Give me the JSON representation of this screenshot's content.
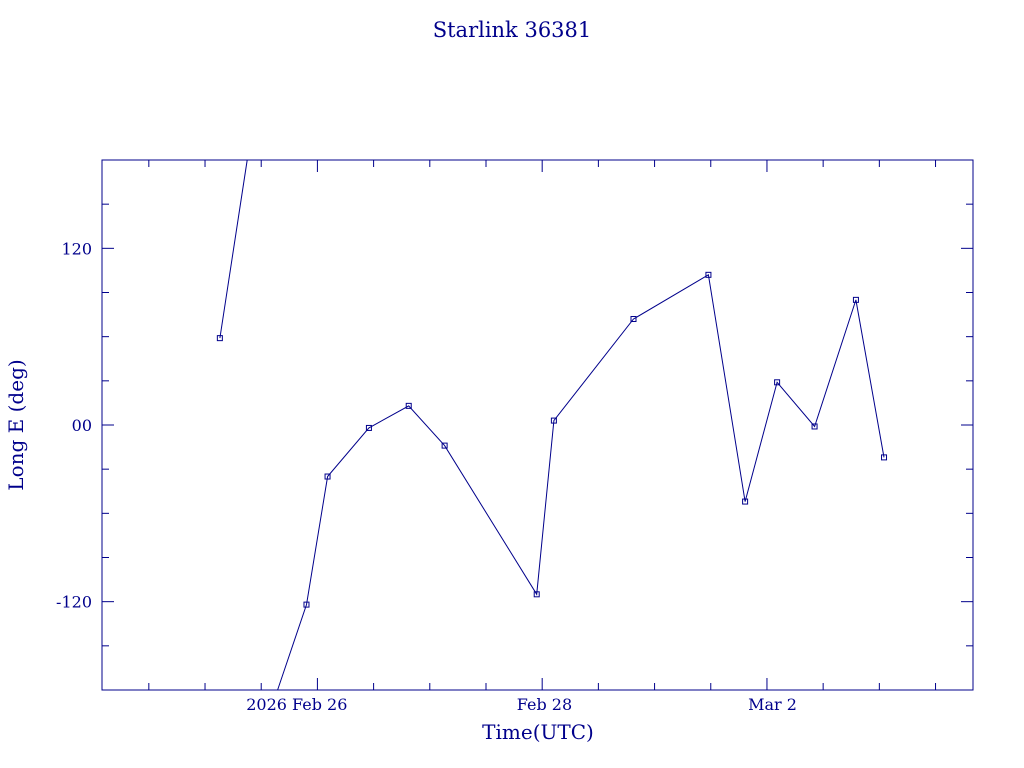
{
  "chart_data": {
    "type": "line",
    "title": "Starlink 36381",
    "xlabel": "Time(UTC)",
    "ylabel": "Long E (deg)",
    "x_tick_labels": [
      "2026 Feb 26",
      "Feb 28",
      "Mar  2"
    ],
    "y_tick_labels": [
      "120",
      "00",
      "-120"
    ],
    "x_ticks": [
      "2026-02-26T00:00",
      "2026-02-28T00:00",
      "2026-03-02T00:00"
    ],
    "y_ticks": [
      120,
      0,
      -120
    ],
    "xlim": [
      "2026-02-24T02:00",
      "2026-03-03T20:00"
    ],
    "ylim": [
      -180,
      180
    ],
    "grid": false,
    "series": [
      {
        "segments": [
          [
            {
              "x": "2026-02-25T03:10",
              "y": 59
            },
            {
              "x": "2026-02-25T09:00",
              "y": 180
            }
          ],
          [
            {
              "x": "2026-02-25T15:30",
              "y": -180
            },
            {
              "x": "2026-02-25T21:40",
              "y": -122
            },
            {
              "x": "2026-02-26T02:10",
              "y": -35
            },
            {
              "x": "2026-02-26T11:00",
              "y": -2
            },
            {
              "x": "2026-02-26T19:30",
              "y": 13
            },
            {
              "x": "2026-02-27T03:10",
              "y": -14
            },
            {
              "x": "2026-02-27T22:50",
              "y": -115
            },
            {
              "x": "2026-02-28T02:30",
              "y": 3
            },
            {
              "x": "2026-02-28T19:30",
              "y": 72
            },
            {
              "x": "2026-03-01T11:30",
              "y": 102
            },
            {
              "x": "2026-03-01T19:20",
              "y": -52
            },
            {
              "x": "2026-03-02T02:10",
              "y": 29
            },
            {
              "x": "2026-03-02T10:10",
              "y": -1
            },
            {
              "x": "2026-03-02T19:00",
              "y": 85
            },
            {
              "x": "2026-03-03T01:00",
              "y": -22
            }
          ]
        ]
      }
    ]
  }
}
